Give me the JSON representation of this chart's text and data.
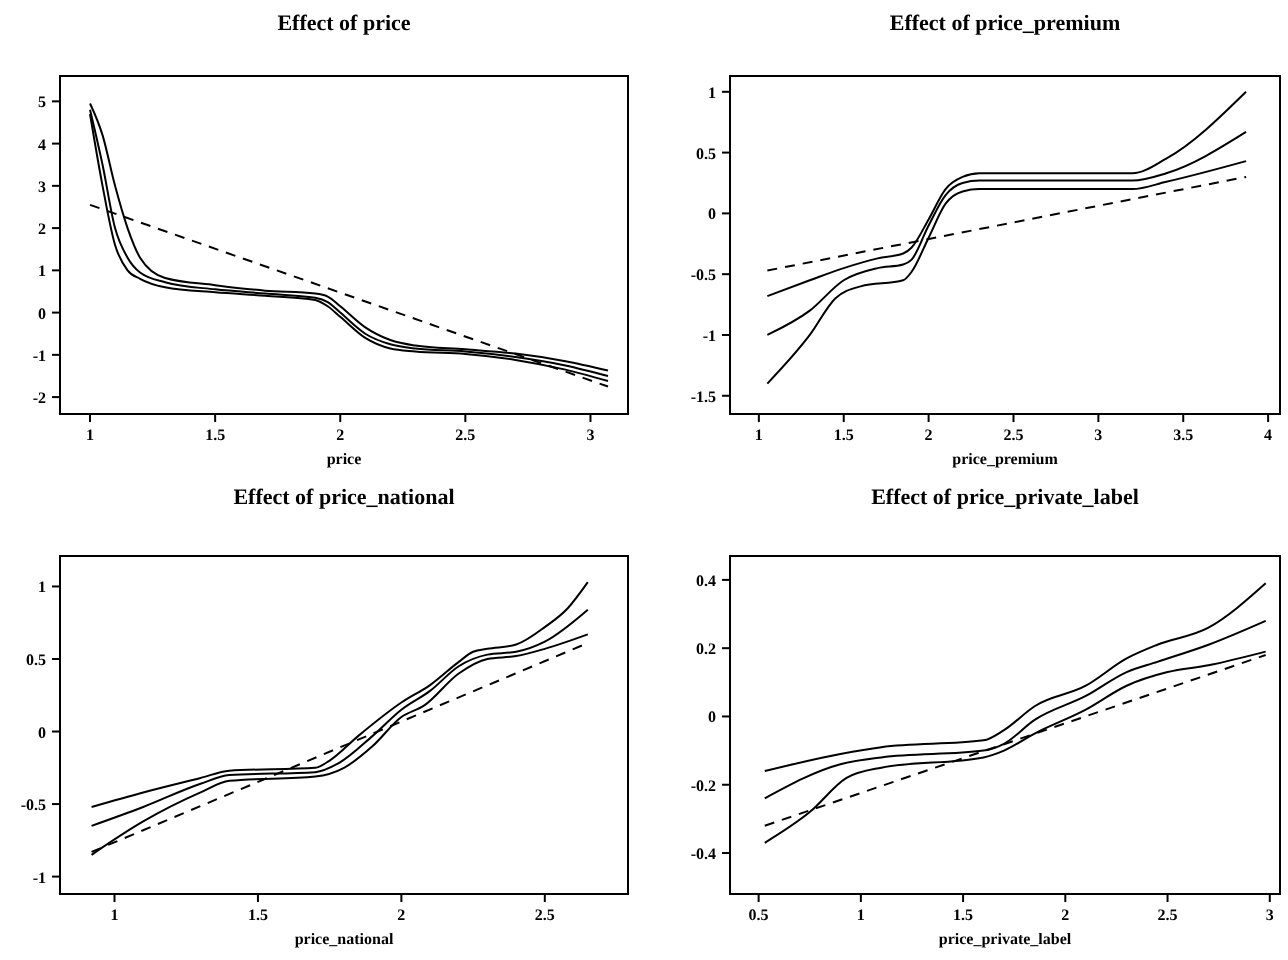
{
  "chart_data": [
    {
      "type": "line",
      "title": "Effect of price",
      "xlabel": "price",
      "xlim": [
        0.88,
        3.15
      ],
      "ylim": [
        -2.4,
        5.6
      ],
      "xticks": [
        1,
        1.5,
        2,
        2.5,
        3
      ],
      "yticks": [
        -2,
        -1,
        0,
        1,
        2,
        3,
        4,
        5
      ],
      "grid": false,
      "series": [
        {
          "color": "#000000",
          "line_style": "solid",
          "x": [
            1.0,
            1.05,
            1.1,
            1.15,
            1.2,
            1.3,
            1.5,
            1.7,
            1.9,
            1.95,
            2.0,
            2.1,
            2.2,
            2.3,
            2.5,
            2.7,
            2.9,
            3.07
          ],
          "values": [
            4.95,
            4.2,
            3.0,
            2.0,
            1.3,
            0.82,
            0.65,
            0.52,
            0.45,
            0.38,
            0.15,
            -0.35,
            -0.65,
            -0.78,
            -0.87,
            -0.97,
            -1.15,
            -1.37
          ]
        },
        {
          "color": "#000000",
          "line_style": "solid",
          "x": [
            1.0,
            1.05,
            1.1,
            1.15,
            1.2,
            1.3,
            1.5,
            1.7,
            1.9,
            1.95,
            2.0,
            2.1,
            2.2,
            2.3,
            2.5,
            2.7,
            2.9,
            3.07
          ],
          "values": [
            4.8,
            3.5,
            2.0,
            1.3,
            0.95,
            0.72,
            0.55,
            0.45,
            0.35,
            0.25,
            0.0,
            -0.5,
            -0.75,
            -0.85,
            -0.92,
            -1.05,
            -1.25,
            -1.5
          ]
        },
        {
          "color": "#000000",
          "line_style": "solid",
          "x": [
            1.0,
            1.05,
            1.1,
            1.15,
            1.2,
            1.3,
            1.5,
            1.7,
            1.9,
            1.95,
            2.0,
            2.1,
            2.2,
            2.3,
            2.5,
            2.7,
            2.9,
            3.07
          ],
          "values": [
            4.7,
            3.0,
            1.6,
            1.0,
            0.8,
            0.6,
            0.48,
            0.4,
            0.3,
            0.15,
            -0.1,
            -0.6,
            -0.85,
            -0.92,
            -0.98,
            -1.12,
            -1.35,
            -1.62
          ]
        },
        {
          "color": "#000000",
          "line_style": "dashed",
          "x": [
            1.0,
            3.07
          ],
          "values": [
            2.55,
            -1.75
          ]
        }
      ]
    },
    {
      "type": "line",
      "title": "Effect of price_premium",
      "xlabel": "price_premium",
      "xlim": [
        0.83,
        4.07
      ],
      "ylim": [
        -1.65,
        1.13
      ],
      "xticks": [
        1,
        1.5,
        2,
        2.5,
        3,
        3.5,
        4
      ],
      "yticks": [
        -1.5,
        -1,
        -0.5,
        0,
        0.5,
        1
      ],
      "grid": false,
      "series": [
        {
          "color": "#000000",
          "line_style": "solid",
          "x": [
            1.05,
            1.3,
            1.5,
            1.7,
            1.85,
            1.9,
            2.0,
            2.1,
            2.2,
            2.3,
            3.2,
            3.4,
            3.87
          ],
          "values": [
            -0.68,
            -0.55,
            -0.45,
            -0.37,
            -0.33,
            -0.28,
            -0.05,
            0.2,
            0.3,
            0.33,
            0.33,
            0.45,
            1.0
          ]
        },
        {
          "color": "#000000",
          "line_style": "solid",
          "x": [
            1.05,
            1.3,
            1.5,
            1.7,
            1.85,
            1.9,
            2.0,
            2.1,
            2.2,
            2.3,
            3.2,
            3.4,
            3.87
          ],
          "values": [
            -1.0,
            -0.8,
            -0.55,
            -0.45,
            -0.42,
            -0.38,
            -0.1,
            0.15,
            0.25,
            0.27,
            0.27,
            0.33,
            0.67
          ]
        },
        {
          "color": "#000000",
          "line_style": "solid",
          "x": [
            1.05,
            1.3,
            1.45,
            1.6,
            1.85,
            1.9,
            2.0,
            2.1,
            2.2,
            2.3,
            3.2,
            3.4,
            3.87
          ],
          "values": [
            -1.4,
            -1.0,
            -0.7,
            -0.6,
            -0.55,
            -0.48,
            -0.2,
            0.08,
            0.18,
            0.2,
            0.2,
            0.26,
            0.43
          ]
        },
        {
          "color": "#000000",
          "line_style": "dashed",
          "x": [
            1.05,
            3.87
          ],
          "values": [
            -0.47,
            0.3
          ]
        }
      ]
    },
    {
      "type": "line",
      "title": "Effect of price_national",
      "xlabel": "price_national",
      "xlim": [
        0.81,
        2.79
      ],
      "ylim": [
        -1.12,
        1.21
      ],
      "xticks": [
        1,
        1.5,
        2,
        2.5
      ],
      "yticks": [
        -1,
        -0.5,
        0,
        0.5,
        1
      ],
      "grid": false,
      "series": [
        {
          "color": "#000000",
          "line_style": "solid",
          "x": [
            0.92,
            1.1,
            1.3,
            1.4,
            1.7,
            1.75,
            1.85,
            2.0,
            2.1,
            2.2,
            2.25,
            2.3,
            2.4,
            2.5,
            2.58,
            2.65
          ],
          "values": [
            -0.52,
            -0.42,
            -0.32,
            -0.27,
            -0.25,
            -0.2,
            -0.03,
            0.2,
            0.32,
            0.48,
            0.55,
            0.57,
            0.6,
            0.72,
            0.85,
            1.03
          ]
        },
        {
          "color": "#000000",
          "line_style": "solid",
          "x": [
            0.92,
            1.1,
            1.3,
            1.4,
            1.7,
            1.78,
            1.9,
            2.0,
            2.1,
            2.2,
            2.3,
            2.4,
            2.5,
            2.65
          ],
          "values": [
            -0.65,
            -0.52,
            -0.36,
            -0.3,
            -0.28,
            -0.22,
            -0.03,
            0.15,
            0.28,
            0.45,
            0.53,
            0.55,
            0.62,
            0.84
          ]
        },
        {
          "color": "#000000",
          "line_style": "solid",
          "x": [
            0.92,
            1.1,
            1.3,
            1.4,
            1.7,
            1.8,
            1.9,
            2.0,
            2.08,
            2.2,
            2.3,
            2.4,
            2.5,
            2.65
          ],
          "values": [
            -0.85,
            -0.62,
            -0.42,
            -0.34,
            -0.31,
            -0.25,
            -0.1,
            0.1,
            0.18,
            0.4,
            0.5,
            0.52,
            0.57,
            0.67
          ]
        },
        {
          "color": "#000000",
          "line_style": "dashed",
          "x": [
            0.92,
            2.65
          ],
          "values": [
            -0.83,
            0.61
          ]
        }
      ]
    },
    {
      "type": "line",
      "title": "Effect of price_private_label",
      "xlabel": "price_private_label",
      "xlim": [
        0.36,
        3.05
      ],
      "ylim": [
        -0.52,
        0.47
      ],
      "xticks": [
        0.5,
        1,
        1.5,
        2,
        2.5,
        3
      ],
      "yticks": [
        -0.4,
        -0.2,
        0,
        0.2,
        0.4
      ],
      "grid": false,
      "series": [
        {
          "color": "#000000",
          "line_style": "solid",
          "x": [
            0.53,
            0.9,
            1.1,
            1.6,
            1.7,
            1.85,
            2.1,
            2.3,
            2.45,
            2.7,
            2.98
          ],
          "values": [
            -0.16,
            -0.11,
            -0.09,
            -0.07,
            -0.04,
            0.03,
            0.09,
            0.17,
            0.21,
            0.26,
            0.39
          ]
        },
        {
          "color": "#000000",
          "line_style": "solid",
          "x": [
            0.53,
            0.9,
            1.1,
            1.6,
            1.7,
            1.85,
            2.1,
            2.3,
            2.45,
            2.7,
            2.98
          ],
          "values": [
            -0.24,
            -0.14,
            -0.12,
            -0.1,
            -0.08,
            -0.01,
            0.06,
            0.13,
            0.16,
            0.21,
            0.28
          ]
        },
        {
          "color": "#000000",
          "line_style": "solid",
          "x": [
            0.53,
            0.75,
            0.93,
            1.1,
            1.6,
            1.7,
            1.85,
            2.1,
            2.3,
            2.5,
            2.7,
            2.98
          ],
          "values": [
            -0.37,
            -0.28,
            -0.18,
            -0.15,
            -0.12,
            -0.1,
            -0.05,
            0.02,
            0.09,
            0.13,
            0.15,
            0.19
          ]
        },
        {
          "color": "#000000",
          "line_style": "dashed",
          "x": [
            0.53,
            2.98
          ],
          "values": [
            -0.32,
            0.18
          ]
        }
      ]
    }
  ]
}
